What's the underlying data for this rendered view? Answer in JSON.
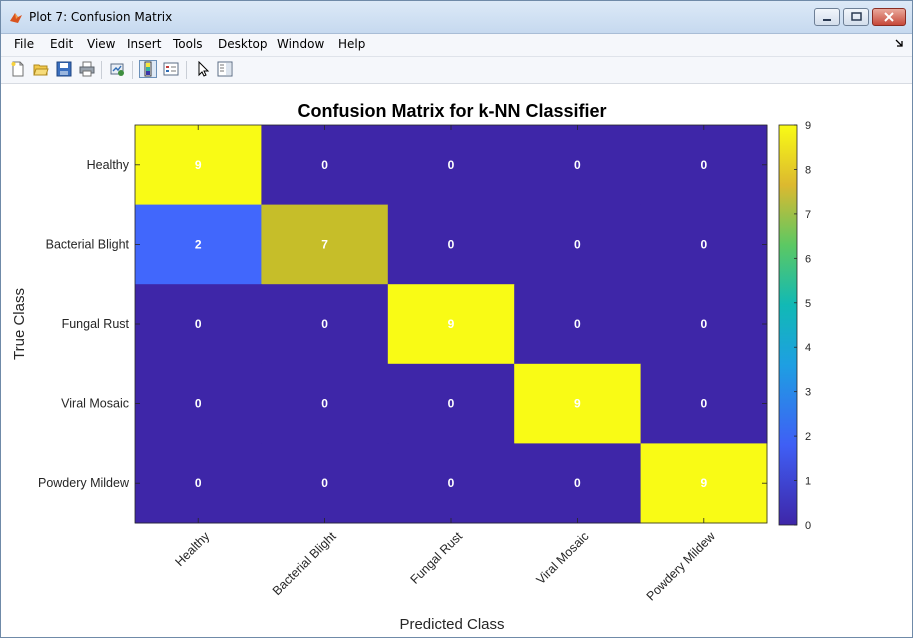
{
  "window": {
    "title": "Plot 7: Confusion Matrix"
  },
  "menu": [
    "File",
    "Edit",
    "View",
    "Insert",
    "Tools",
    "Desktop",
    "Window",
    "Help"
  ],
  "toolbar": {
    "icons": [
      "new-figure-icon",
      "open-file-icon",
      "save-icon",
      "print-icon",
      "link-plot-icon",
      "toggle-colorbar-icon",
      "insert-legend-icon",
      "pointer-icon",
      "property-editor-icon"
    ]
  },
  "chart_data": {
    "type": "heatmap",
    "title": "Confusion Matrix for k-NN Classifier",
    "xlabel": "Predicted Class",
    "ylabel": "True Class",
    "x_categories": [
      "Healthy",
      "Bacterial Blight",
      "Fungal Rust",
      "Viral Mosaic",
      "Powdery Mildew"
    ],
    "y_categories": [
      "Healthy",
      "Bacterial Blight",
      "Fungal Rust",
      "Viral Mosaic",
      "Powdery Mildew"
    ],
    "values": [
      [
        9,
        0,
        0,
        0,
        0
      ],
      [
        2,
        7,
        0,
        0,
        0
      ],
      [
        0,
        0,
        9,
        0,
        0
      ],
      [
        0,
        0,
        0,
        9,
        0
      ],
      [
        0,
        0,
        0,
        0,
        9
      ]
    ],
    "colorbar": {
      "range": [
        0,
        9
      ],
      "ticks": [
        0,
        1,
        2,
        3,
        4,
        5,
        6,
        7,
        8,
        9
      ],
      "colormap": "parula"
    }
  }
}
